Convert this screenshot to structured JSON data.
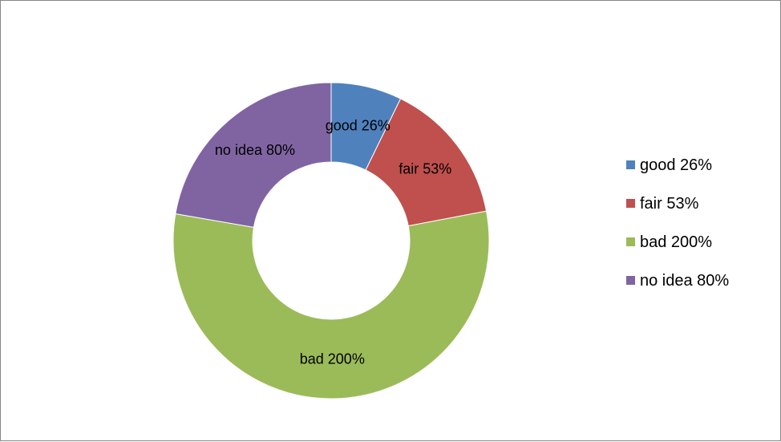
{
  "chart_data": {
    "type": "donut",
    "categories": [
      "good",
      "fair",
      "bad",
      "no idea"
    ],
    "values": [
      26,
      53,
      200,
      80
    ],
    "data_labels": [
      "good 26%",
      "fair 53%",
      "bad 200%",
      "no idea 80%"
    ],
    "legend_labels": [
      "good   26%",
      "fair  53%",
      "bad   200%",
      "no idea   80%"
    ],
    "colors": [
      "#4F81BD",
      "#C0504D",
      "#9BBB59",
      "#8064A2"
    ],
    "legend_position": "right",
    "title": ""
  }
}
